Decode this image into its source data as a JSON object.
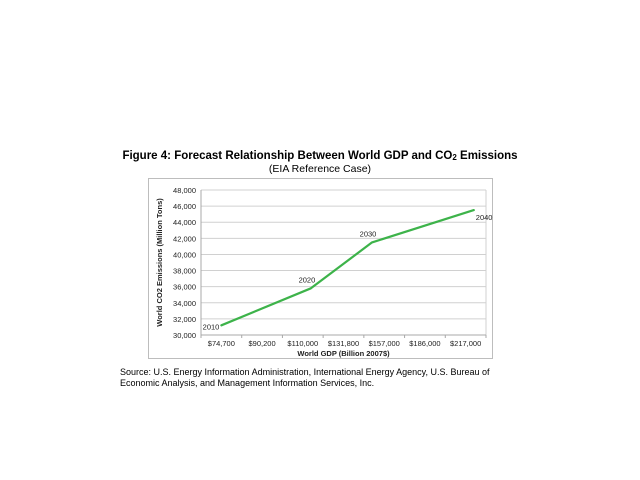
{
  "title": {
    "main": "Figure 4:  Forecast Relationship Between World GDP and CO",
    "subscript": "2",
    "suffix": " Emissions"
  },
  "subtitle": "(EIA Reference Case)",
  "source": "Source:  U.S. Energy Information Administration, International Energy Agency, U.S. Bureau of Economic Analysis, and Management Information Services, Inc.",
  "colors": {
    "line": "#3db34a",
    "grid": "#d0d0d0",
    "frame": "#bdbdbd"
  },
  "chart_data": {
    "type": "line",
    "xlabel": "World GDP (Billion 2007$)",
    "ylabel": "World CO2 Emissions (Million Tons)",
    "x_tick_labels": [
      "$74,700",
      "$90,200",
      "$110,000",
      "$131,800",
      "$157,000",
      "$186,000",
      "$217,000"
    ],
    "ylim": [
      30000,
      48000
    ],
    "y_ticks": [
      30000,
      32000,
      34000,
      36000,
      38000,
      40000,
      42000,
      44000,
      46000,
      48000
    ],
    "y_tick_labels": [
      "30,000",
      "32,000",
      "34,000",
      "36,000",
      "38,000",
      "40,000",
      "42,000",
      "44,000",
      "46,000",
      "48,000"
    ],
    "grid": true,
    "series": [
      {
        "points": [
          {
            "x": 0.0,
            "y": 31200
          },
          {
            "x": 2.2,
            "y": 35800
          },
          {
            "x": 3.7,
            "y": 41500
          },
          {
            "x": 6.2,
            "y": 45500
          }
        ]
      }
    ],
    "annotations": [
      {
        "label": "2010",
        "point": 0
      },
      {
        "label": "2020",
        "point": 1
      },
      {
        "label": "2030",
        "point": 2
      },
      {
        "label": "2040",
        "point": 3
      }
    ]
  }
}
